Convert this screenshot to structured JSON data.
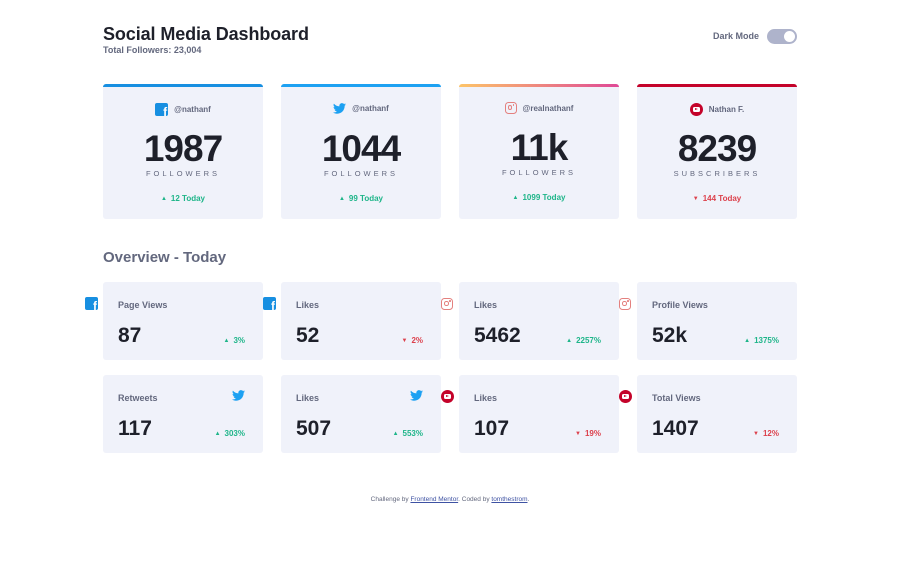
{
  "header": {
    "title": "Social Media Dashboard",
    "subtitle": "Total Followers: 23,004",
    "dark_mode_label": "Dark Mode"
  },
  "colors": {
    "facebook": "#178fe1",
    "twitter": "#1da1f2",
    "instagram_start": "#fdc468",
    "instagram_end": "#df4996",
    "youtube": "#c4032a",
    "up": "#1eb589",
    "down": "#dc414c",
    "card_bg": "#f0f2fa"
  },
  "cards": [
    {
      "network": "facebook",
      "icon": "facebook-icon",
      "handle": "@nathanf",
      "count": "1987",
      "unit": "FOLLOWERS",
      "today": "12 Today",
      "trend": "up"
    },
    {
      "network": "twitter",
      "icon": "twitter-icon",
      "handle": "@nathanf",
      "count": "1044",
      "unit": "FOLLOWERS",
      "today": "99 Today",
      "trend": "up"
    },
    {
      "network": "instagram",
      "icon": "instagram-icon",
      "handle": "@realnathanf",
      "count": "11k",
      "unit": "FOLLOWERS",
      "today": "1099 Today",
      "trend": "up"
    },
    {
      "network": "youtube",
      "icon": "youtube-icon",
      "handle": "Nathan F.",
      "count": "8239",
      "unit": "SUBSCRIBERS",
      "today": "144 Today",
      "trend": "down"
    }
  ],
  "overview": {
    "title": "Overview - Today",
    "items": [
      {
        "label": "Page Views",
        "icon": "facebook-icon",
        "value": "87",
        "pct": "3%",
        "trend": "up"
      },
      {
        "label": "Likes",
        "icon": "facebook-icon",
        "value": "52",
        "pct": "2%",
        "trend": "down"
      },
      {
        "label": "Likes",
        "icon": "instagram-icon",
        "value": "5462",
        "pct": "2257%",
        "trend": "up"
      },
      {
        "label": "Profile Views",
        "icon": "instagram-icon",
        "value": "52k",
        "pct": "1375%",
        "trend": "up"
      },
      {
        "label": "Retweets",
        "icon": "twitter-icon",
        "value": "117",
        "pct": "303%",
        "trend": "up"
      },
      {
        "label": "Likes",
        "icon": "twitter-icon",
        "value": "507",
        "pct": "553%",
        "trend": "up"
      },
      {
        "label": "Likes",
        "icon": "youtube-icon",
        "value": "107",
        "pct": "19%",
        "trend": "down"
      },
      {
        "label": "Total Views",
        "icon": "youtube-icon",
        "value": "1407",
        "pct": "12%",
        "trend": "down"
      }
    ]
  },
  "footer": {
    "prefix": "Challenge by",
    "link1": "Frontend Mentor",
    "middle": ". Coded by",
    "link2": "tomthestrom",
    "suffix": "."
  }
}
